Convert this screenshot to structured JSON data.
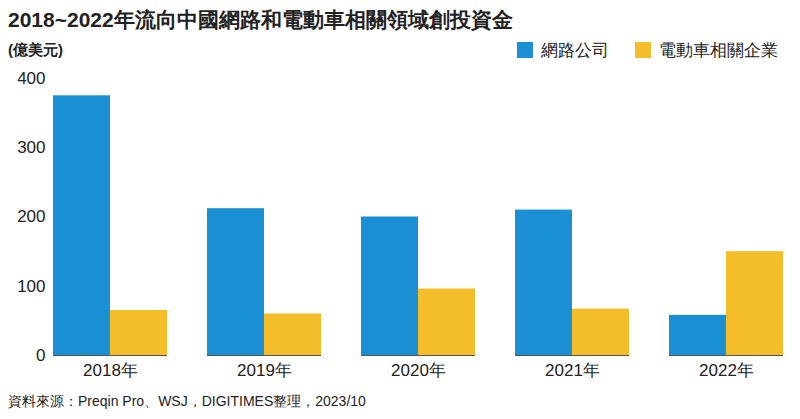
{
  "chart_data": {
    "type": "bar",
    "title": "2018~2022年流向中國網路和電動車相關領域創投資金",
    "ylabel": "(億美元)",
    "source": "資料來源：Preqin Pro、WSJ，DIGITIMES整理，2023/10",
    "categories": [
      "2018年",
      "2019年",
      "2020年",
      "2021年",
      "2022年"
    ],
    "series": [
      {
        "name": "網路公司",
        "color": "#1b8fd4",
        "values": [
          375,
          212,
          200,
          210,
          58
        ]
      },
      {
        "name": "電動車相關企業",
        "color": "#f4be2a",
        "values": [
          65,
          60,
          96,
          67,
          150
        ]
      }
    ],
    "ylim": [
      0,
      400
    ],
    "yticks": [
      0,
      100,
      200,
      300,
      400
    ],
    "grid": false,
    "legend": "top-right"
  }
}
